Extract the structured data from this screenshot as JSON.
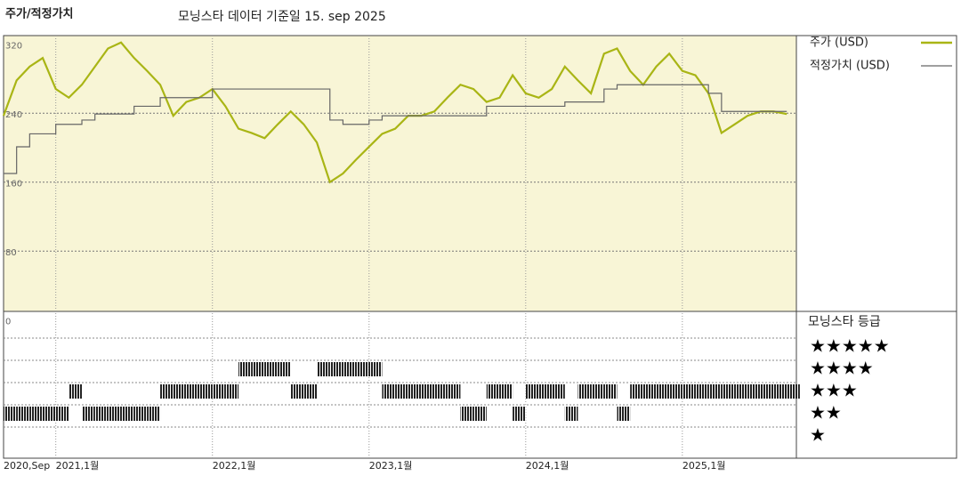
{
  "chart_data": {
    "type": "line",
    "title": "주가/적정가치",
    "subtitle": "모닝스타 데이터 기준일 15. sep 2025",
    "x": [
      "2020-09",
      "2020-10",
      "2020-11",
      "2020-12",
      "2021-01",
      "2021-02",
      "2021-03",
      "2021-04",
      "2021-05",
      "2021-06",
      "2021-07",
      "2021-08",
      "2021-09",
      "2021-10",
      "2021-11",
      "2021-12",
      "2022-01",
      "2022-02",
      "2022-03",
      "2022-04",
      "2022-05",
      "2022-06",
      "2022-07",
      "2022-08",
      "2022-09",
      "2022-10",
      "2022-11",
      "2022-12",
      "2023-01",
      "2023-02",
      "2023-03",
      "2023-04",
      "2023-05",
      "2023-06",
      "2023-07",
      "2023-08",
      "2023-09",
      "2023-10",
      "2023-11",
      "2023-12",
      "2024-01",
      "2024-02",
      "2024-03",
      "2024-04",
      "2024-05",
      "2024-06",
      "2024-07",
      "2024-08",
      "2024-09",
      "2024-10",
      "2024-11",
      "2024-12",
      "2025-01",
      "2025-02",
      "2025-03",
      "2025-04",
      "2025-05",
      "2025-06",
      "2025-07",
      "2025-08",
      "2025-09"
    ],
    "series": [
      {
        "name": "주가 (USD)",
        "color": "#a9b515",
        "values": [
          237,
          278,
          294,
          304,
          268,
          258,
          273,
          294,
          315,
          322,
          304,
          289,
          273,
          237,
          253,
          258,
          268,
          248,
          222,
          217,
          211,
          227,
          242,
          227,
          206,
          160,
          170,
          186,
          201,
          216,
          222,
          237,
          237,
          242,
          258,
          273,
          268,
          253,
          258,
          284,
          263,
          258,
          268,
          294,
          278,
          263,
          309,
          315,
          289,
          273,
          294,
          309,
          289,
          284,
          263,
          217,
          227,
          237,
          242,
          242,
          239
        ]
      },
      {
        "name": "적정가치 (USD)",
        "color": "#666666",
        "values": [
          170,
          201,
          216,
          216,
          227,
          227,
          232,
          239,
          239,
          239,
          248,
          248,
          258,
          258,
          258,
          258,
          268,
          268,
          268,
          268,
          268,
          268,
          268,
          268,
          268,
          232,
          227,
          227,
          232,
          237,
          237,
          237,
          237,
          237,
          237,
          237,
          237,
          248,
          248,
          248,
          248,
          248,
          248,
          253,
          253,
          253,
          268,
          273,
          273,
          273,
          273,
          273,
          273,
          273,
          263,
          242,
          242,
          242,
          242,
          242,
          242
        ]
      }
    ],
    "ylim": [
      10,
      330
    ],
    "yticks": [
      0,
      80,
      160,
      240,
      320
    ],
    "xticks": [
      {
        "value": "2020-09",
        "label": "2020,Sep"
      },
      {
        "value": "2021-01",
        "label": "2021,1월"
      },
      {
        "value": "2022-01",
        "label": "2022,1월"
      },
      {
        "value": "2023-01",
        "label": "2023,1월"
      },
      {
        "value": "2024-01",
        "label": "2024,1월"
      },
      {
        "value": "2025-01",
        "label": "2025,1월"
      }
    ],
    "rating": {
      "title": "모닝스타 등급",
      "levels": [
        {
          "value": 5,
          "label": "★★★★★"
        },
        {
          "value": 4,
          "label": "★★★★"
        },
        {
          "value": 3,
          "label": "★★★"
        },
        {
          "value": 2,
          "label": "★★"
        },
        {
          "value": 1,
          "label": "★"
        }
      ],
      "values": [
        2,
        2,
        2,
        2,
        2,
        3,
        2,
        2,
        2,
        2,
        2,
        2,
        3,
        3,
        3,
        3,
        3,
        3,
        4,
        4,
        4,
        4,
        3,
        3,
        4,
        4,
        4,
        4,
        4,
        3,
        3,
        3,
        3,
        3,
        3,
        2,
        2,
        3,
        3,
        2,
        3,
        3,
        3,
        2,
        3,
        3,
        3,
        2,
        3,
        3,
        3,
        3,
        3,
        3,
        3,
        3,
        3,
        3,
        3,
        3,
        3
      ]
    }
  }
}
